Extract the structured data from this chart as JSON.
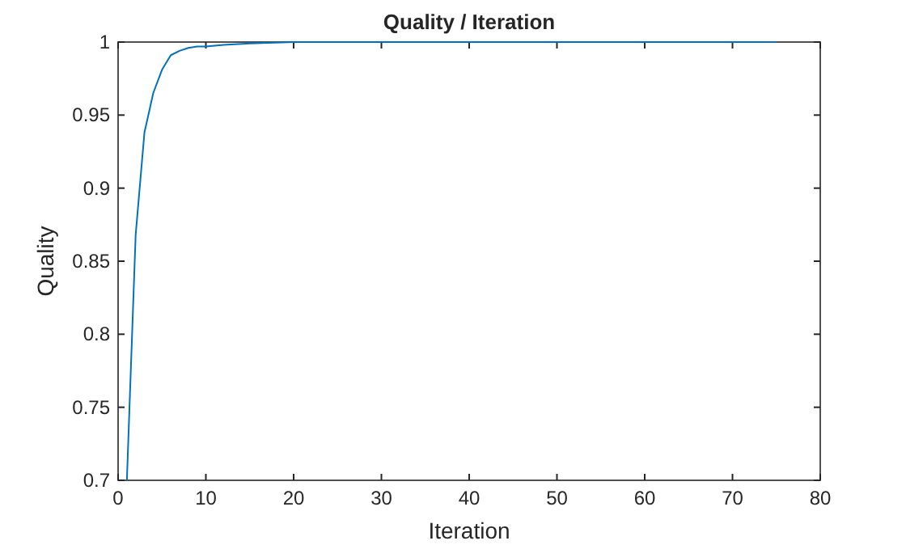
{
  "chart_data": {
    "type": "line",
    "title": "Quality / Iteration",
    "xlabel": "Iteration",
    "ylabel": "Quality",
    "series": [
      {
        "color": "#0072bd",
        "x": [
          1,
          2,
          3,
          4,
          5,
          6,
          7,
          8,
          9,
          10,
          12,
          15,
          20,
          25,
          30,
          40,
          50,
          60,
          75
        ],
        "values": [
          0.7,
          0.868,
          0.938,
          0.965,
          0.981,
          0.991,
          0.994,
          0.996,
          0.997,
          0.997,
          0.998,
          0.999,
          1,
          1,
          1,
          1,
          1,
          1,
          1
        ]
      }
    ],
    "xlim": [
      0,
      80
    ],
    "xticks": [
      0,
      10,
      20,
      30,
      40,
      50,
      60,
      70,
      80
    ],
    "ylim": [
      0.7,
      1
    ],
    "yticks": [
      0.7,
      0.75,
      0.8,
      0.85,
      0.9,
      0.95,
      1
    ],
    "grid": false,
    "marker": "none",
    "line_style": "solid"
  }
}
